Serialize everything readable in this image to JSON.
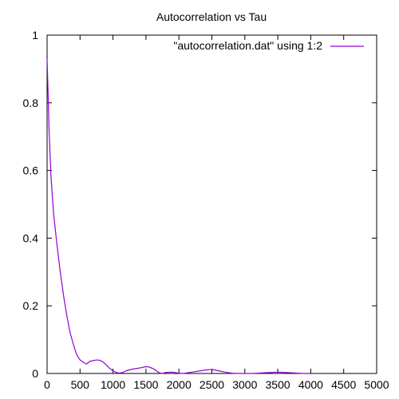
{
  "chart_data": {
    "type": "line",
    "title": "Autocorrelation vs Tau",
    "xlabel": "",
    "ylabel": "",
    "xlim": [
      0,
      5000
    ],
    "ylim": [
      0,
      1
    ],
    "xticks": [
      0,
      500,
      1000,
      1500,
      2000,
      2500,
      3000,
      3500,
      4000,
      4500,
      5000
    ],
    "yticks": [
      0,
      0.2,
      0.4,
      0.6,
      0.8,
      1
    ],
    "grid": false,
    "legend_position": "top-right",
    "series": [
      {
        "name": "\"autocorrelation.dat\" using 1:2",
        "color": "#9400d3",
        "x": [
          0,
          15,
          30,
          60,
          100,
          150,
          200,
          250,
          300,
          350,
          400,
          450,
          500,
          550,
          600,
          650,
          700,
          750,
          800,
          850,
          900,
          950,
          1000,
          1050,
          1100,
          1150,
          1200,
          1300,
          1400,
          1500,
          1550,
          1600,
          1650,
          1700,
          1750,
          1800,
          1900,
          2000,
          2050,
          2100,
          2200,
          2300,
          2400,
          2500,
          2550,
          2600,
          2700,
          2800,
          2900,
          3000,
          3100,
          3200,
          3300,
          3400,
          3500,
          3600,
          3700,
          3800,
          3900,
          4000
        ],
        "y": [
          0.93,
          0.83,
          0.72,
          0.58,
          0.47,
          0.38,
          0.3,
          0.23,
          0.17,
          0.12,
          0.085,
          0.055,
          0.04,
          0.033,
          0.028,
          0.036,
          0.038,
          0.04,
          0.039,
          0.034,
          0.025,
          0.015,
          0.008,
          0.003,
          0.001,
          0.003,
          0.008,
          0.013,
          0.016,
          0.02,
          0.019,
          0.015,
          0.009,
          0.002,
          0.0,
          0.003,
          0.004,
          0.001,
          0.0,
          0.001,
          0.004,
          0.007,
          0.01,
          0.012,
          0.01,
          0.008,
          0.004,
          0.001,
          0.0,
          0.0,
          0.0,
          0.001,
          0.002,
          0.003,
          0.004,
          0.003,
          0.002,
          0.001,
          0.0,
          0.0
        ]
      }
    ]
  }
}
